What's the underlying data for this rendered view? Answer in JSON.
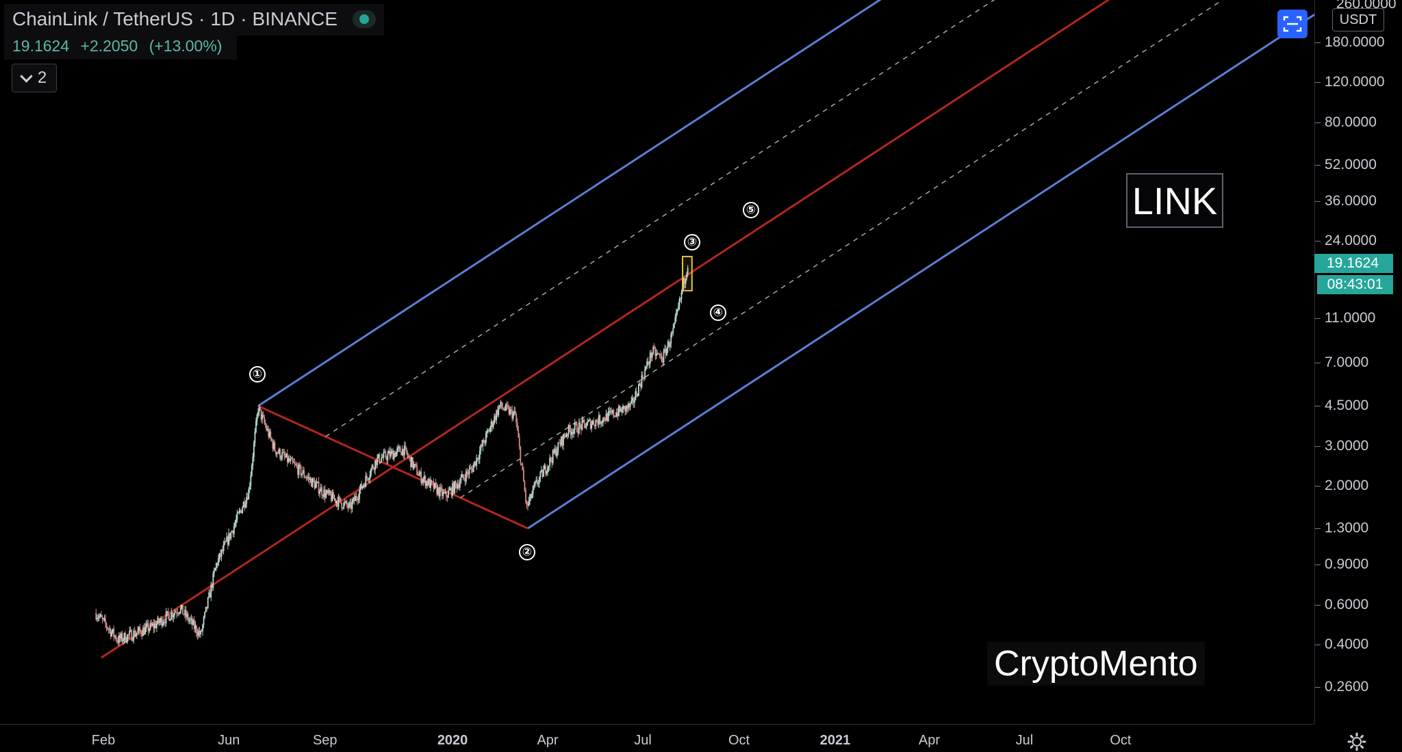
{
  "header": {
    "symbol": "ChainLink / TetherUS",
    "interval": "1D",
    "exchange": "BINANCE",
    "separator": "·",
    "price": "19.1624",
    "change": "+2.2050",
    "change_pct": "(+13.00%)",
    "collapse_count": "2"
  },
  "annotations": {
    "wave_labels": [
      "①",
      "②",
      "③",
      "④",
      "⑤"
    ],
    "symbol_box": "LINK",
    "watermark": "CryptoMento"
  },
  "price_axis": {
    "currency": "USDT",
    "top_partial_label": "260.0000",
    "ticks": [
      "180.0000",
      "120.0000",
      "80.0000",
      "52.0000",
      "36.0000",
      "24.0000",
      "11.0000",
      "7.0000",
      "4.5000",
      "3.0000",
      "2.0000",
      "1.3000",
      "0.9000",
      "0.6000",
      "0.4000",
      "0.2600"
    ],
    "last_price": "19.1624",
    "countdown": "08:43:01"
  },
  "time_axis": {
    "labels": [
      "Feb",
      "Jun",
      "Sep",
      "2020",
      "Apr",
      "Jul",
      "Oct",
      "2021",
      "Apr",
      "Jul",
      "Oct"
    ]
  },
  "colors": {
    "background": "#000000",
    "channel_outer": "#5b7fd6",
    "channel_median": "#b3261e",
    "channel_inner_dashed": "#a9ad9a",
    "candle_up": "#b7e0d4",
    "candle_down": "#d98d8d",
    "accent": "#26a69a",
    "highlight_box": "#e3c440"
  },
  "chart_data": {
    "type": "candlestick",
    "title": "ChainLink / TetherUS",
    "y_scale": "log",
    "ylim": [
      0.2,
      270
    ],
    "xlim": [
      "2019-01-20",
      "2021-12-31"
    ],
    "last_price": 19.1624,
    "trend_points": [
      {
        "x": "2019-01-25",
        "y": 0.55
      },
      {
        "x": "2019-02-15",
        "y": 0.42
      },
      {
        "x": "2019-03-20",
        "y": 0.48
      },
      {
        "x": "2019-04-15",
        "y": 0.58
      },
      {
        "x": "2019-05-05",
        "y": 0.44
      },
      {
        "x": "2019-05-20",
        "y": 0.9
      },
      {
        "x": "2019-06-05",
        "y": 1.3
      },
      {
        "x": "2019-06-20",
        "y": 1.9
      },
      {
        "x": "2019-06-29",
        "y": 4.4
      },
      {
        "x": "2019-07-15",
        "y": 2.9
      },
      {
        "x": "2019-08-05",
        "y": 2.4
      },
      {
        "x": "2019-09-01",
        "y": 1.85
      },
      {
        "x": "2019-09-25",
        "y": 1.6
      },
      {
        "x": "2019-10-20",
        "y": 2.6
      },
      {
        "x": "2019-11-15",
        "y": 2.9
      },
      {
        "x": "2019-12-01",
        "y": 2.2
      },
      {
        "x": "2019-12-25",
        "y": 1.8
      },
      {
        "x": "2020-01-20",
        "y": 2.4
      },
      {
        "x": "2020-02-15",
        "y": 4.5
      },
      {
        "x": "2020-03-01",
        "y": 4.1
      },
      {
        "x": "2020-03-12",
        "y": 1.6
      },
      {
        "x": "2020-03-20",
        "y": 2.0
      },
      {
        "x": "2020-04-20",
        "y": 3.5
      },
      {
        "x": "2020-05-20",
        "y": 3.9
      },
      {
        "x": "2020-06-20",
        "y": 4.5
      },
      {
        "x": "2020-07-10",
        "y": 7.8
      },
      {
        "x": "2020-07-20",
        "y": 7.3
      },
      {
        "x": "2020-07-30",
        "y": 9.5
      },
      {
        "x": "2020-08-07",
        "y": 14.0
      },
      {
        "x": "2020-08-13",
        "y": 19.16
      }
    ],
    "pitchfork": {
      "pivot_1": {
        "x": "2019-06-29",
        "y": 4.5
      },
      "pivot_2": {
        "x": "2020-03-13",
        "y": 1.3
      },
      "median_start": {
        "x": "2019-01-30",
        "y": 0.35
      }
    },
    "highlight_box": {
      "x_start": "2020-08-08",
      "x_end": "2020-08-17",
      "y_low": 14.5,
      "y_high": 20.5
    }
  }
}
